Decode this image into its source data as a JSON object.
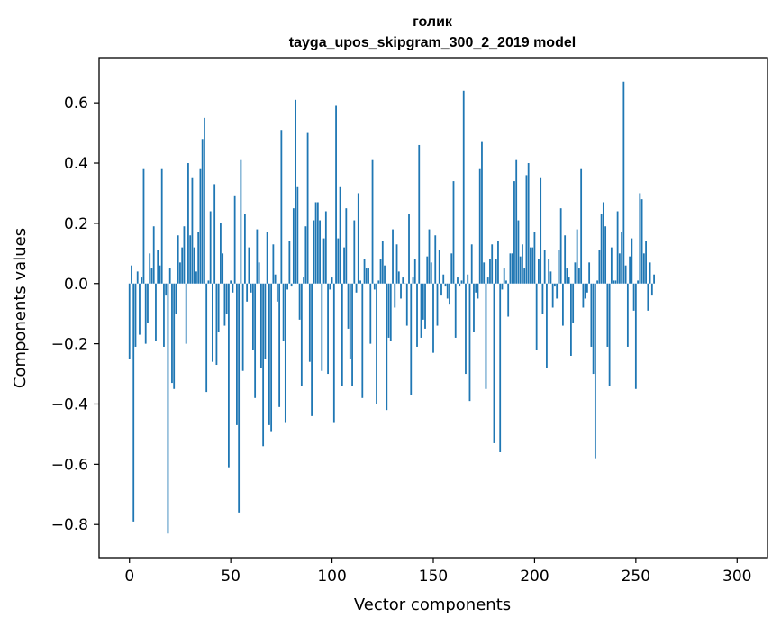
{
  "chart_data": {
    "type": "bar",
    "title": "голик",
    "subtitle": "tayga_upos_skipgram_300_2_2019 model",
    "xlabel": "Vector components",
    "ylabel": "Components values",
    "xlim": [
      -15,
      315
    ],
    "ylim": [
      -0.91,
      0.75
    ],
    "x_ticks": [
      0,
      50,
      100,
      150,
      200,
      250,
      300
    ],
    "x_tick_labels": [
      "0",
      "50",
      "100",
      "150",
      "200",
      "250",
      "300"
    ],
    "y_ticks": [
      -0.8,
      -0.6,
      -0.4,
      -0.2,
      0.0,
      0.2,
      0.4,
      0.6
    ],
    "y_tick_labels": [
      "−0.8",
      "−0.6",
      "−0.4",
      "−0.2",
      "0.0",
      "0.2",
      "0.4",
      "0.6"
    ],
    "grid": false,
    "bar_color": "#1f77b4",
    "series": [
      {
        "values": [
          -0.25,
          0.06,
          -0.79,
          -0.21,
          0.04,
          -0.17,
          0.02,
          0.38,
          -0.2,
          -0.13,
          0.1,
          0.05,
          0.19,
          -0.19,
          0.11,
          0.06,
          0.38,
          -0.21,
          -0.04,
          -0.83,
          0.05,
          -0.33,
          -0.35,
          -0.1,
          0.16,
          0.07,
          0.12,
          0.19,
          -0.2,
          0.4,
          0.16,
          0.35,
          0.12,
          0.04,
          0.17,
          0.38,
          0.48,
          0.55,
          -0.36,
          0.01,
          0.24,
          -0.26,
          0.33,
          -0.27,
          -0.16,
          0.2,
          0.1,
          -0.14,
          -0.1,
          -0.61,
          0.01,
          -0.03,
          0.29,
          -0.47,
          -0.76,
          0.41,
          -0.29,
          0.23,
          -0.06,
          0.12,
          -0.03,
          -0.22,
          -0.38,
          0.18,
          0.07,
          -0.28,
          -0.54,
          -0.25,
          0.17,
          -0.47,
          -0.49,
          0.13,
          0.03,
          -0.06,
          -0.41,
          0.51,
          -0.19,
          -0.46,
          -0.02,
          0.14,
          -0.01,
          0.25,
          0.61,
          0.32,
          -0.12,
          -0.34,
          0.02,
          0.19,
          0.5,
          -0.26,
          -0.44,
          0.21,
          0.27,
          0.27,
          0.21,
          -0.29,
          0.15,
          0.24,
          -0.3,
          -0.02,
          0.02,
          -0.46,
          0.59,
          0.15,
          0.32,
          -0.34,
          0.12,
          0.25,
          -0.15,
          -0.25,
          -0.34,
          0.21,
          -0.03,
          0.3,
          0.01,
          -0.38,
          0.08,
          0.05,
          0.05,
          -0.2,
          0.41,
          -0.02,
          -0.4,
          0.01,
          0.08,
          0.14,
          0.06,
          -0.42,
          -0.18,
          -0.19,
          0.18,
          -0.08,
          0.13,
          0.04,
          -0.05,
          0.02,
          0.0,
          -0.14,
          0.23,
          -0.37,
          0.02,
          0.08,
          -0.21,
          0.46,
          -0.18,
          -0.12,
          -0.15,
          0.09,
          0.18,
          0.07,
          -0.23,
          0.16,
          -0.14,
          0.11,
          -0.04,
          0.03,
          -0.01,
          -0.05,
          -0.07,
          0.1,
          0.34,
          -0.18,
          0.02,
          -0.01,
          0.01,
          0.64,
          -0.3,
          0.03,
          -0.39,
          0.13,
          -0.16,
          -0.03,
          -0.05,
          0.38,
          0.47,
          0.07,
          -0.35,
          0.02,
          0.08,
          0.13,
          -0.53,
          0.08,
          0.14,
          -0.56,
          -0.02,
          0.05,
          0.01,
          -0.11,
          0.1,
          0.1,
          0.34,
          0.41,
          0.21,
          0.09,
          0.13,
          0.05,
          0.36,
          0.4,
          0.12,
          0.12,
          0.17,
          -0.22,
          0.08,
          0.35,
          -0.1,
          0.11,
          -0.28,
          0.08,
          0.04,
          -0.08,
          -0.01,
          -0.05,
          0.11,
          0.25,
          -0.14,
          0.16,
          0.05,
          0.02,
          -0.24,
          -0.13,
          0.07,
          0.18,
          0.05,
          0.38,
          -0.08,
          -0.05,
          -0.03,
          0.07,
          -0.21,
          -0.3,
          -0.58,
          0.01,
          0.11,
          0.23,
          0.27,
          0.19,
          -0.21,
          -0.34,
          0.12,
          0.01,
          0.01,
          0.24,
          0.1,
          0.17,
          0.67,
          0.06,
          -0.21,
          0.09,
          0.15,
          -0.09,
          -0.35,
          0.01,
          0.3,
          0.28,
          0.1,
          0.14,
          -0.09,
          0.07,
          -0.04,
          0.03
        ]
      }
    ]
  }
}
